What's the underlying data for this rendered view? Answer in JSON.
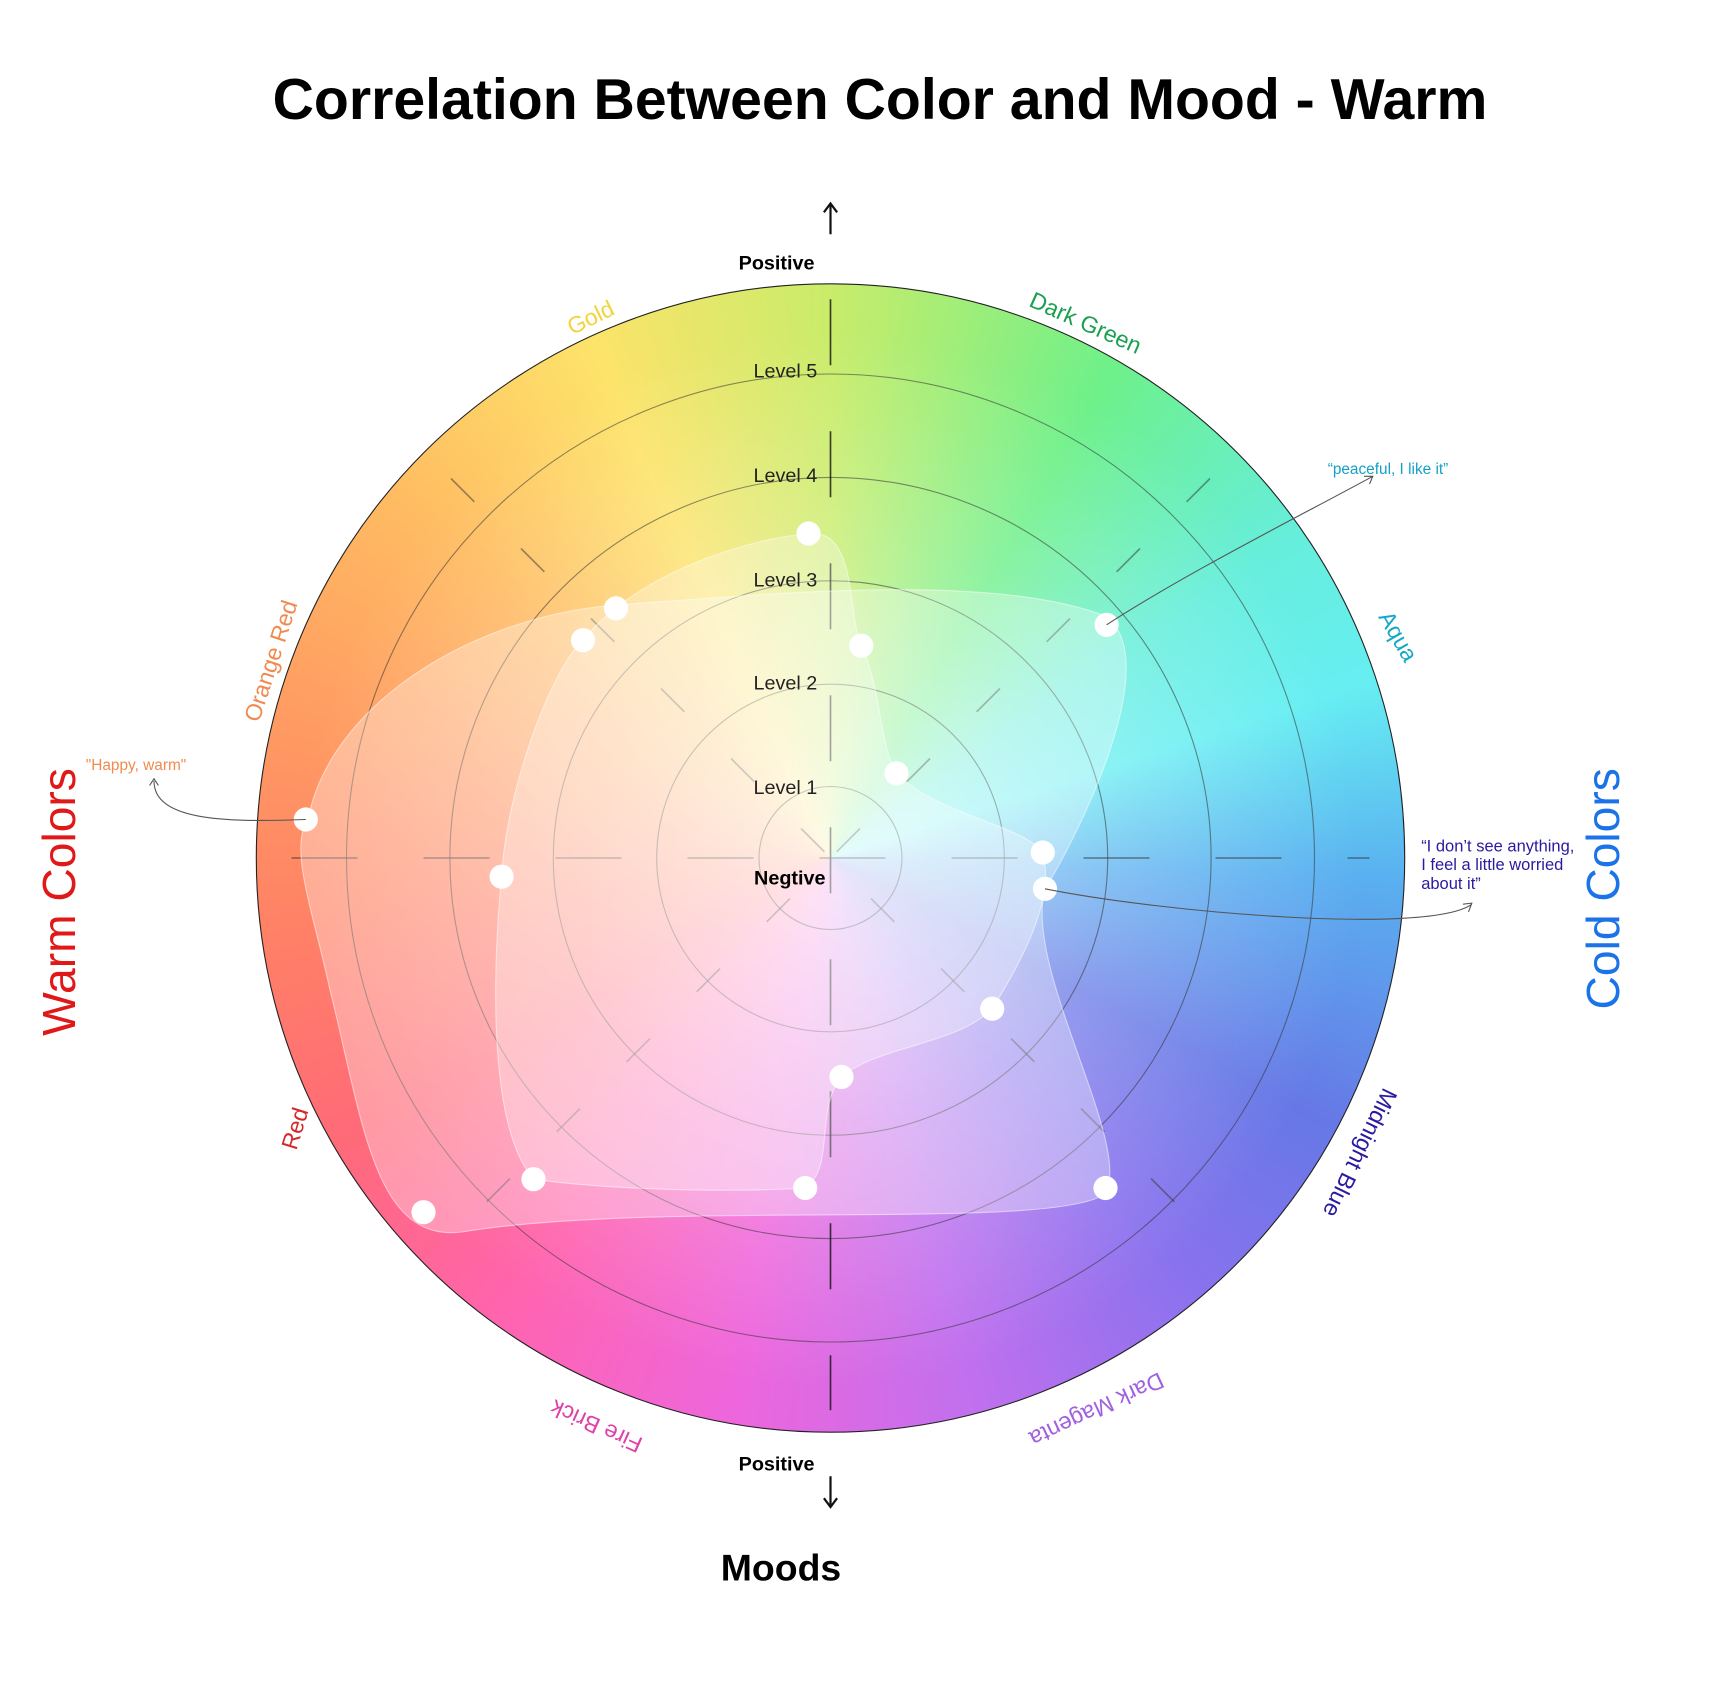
{
  "title": "Correlation Between Color and Mood - Warm",
  "axis": {
    "top": "Positive",
    "bottom": "Positive",
    "center": "Negtive"
  },
  "levels": [
    "Level 1",
    "Level 2",
    "Level 3",
    "Level 4",
    "Level 5"
  ],
  "colors": [
    "Gold",
    "Dark Green",
    "Aqua",
    "Midnight Blue",
    "Dark Magenta",
    "Fire Brick",
    "Red",
    "Orange Red"
  ],
  "annotations": [
    {
      "lines": [
        "\"Happy, warm\""
      ]
    },
    {
      "lines": [
        "“peaceful, I like it”"
      ]
    },
    {
      "lines": [
        "“I don’t see anything,",
        "I feel a little worried",
        "about  it”"
      ]
    }
  ],
  "side_labels": {
    "warm": "Warm Colors",
    "cold": "Cold Colors"
  },
  "footer": "Moods"
}
